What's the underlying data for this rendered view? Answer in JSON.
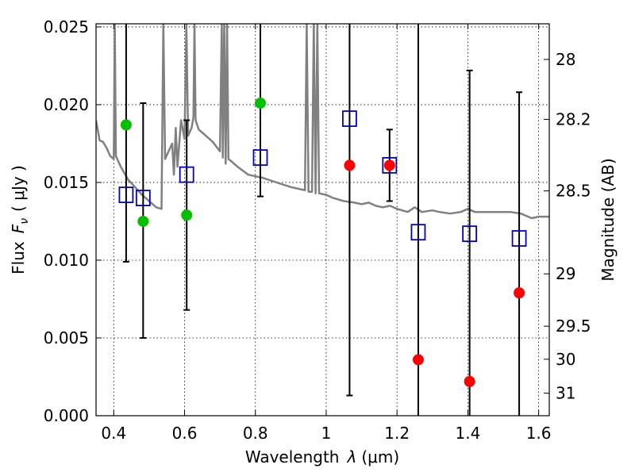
{
  "chart_data": {
    "type": "scatter",
    "xlabel_text": "Wavelength",
    "xlabel_symbol": "λ",
    "xlabel_unit": "(μm)",
    "ylabel_text": "Flux",
    "ylabel_symbol": "F",
    "ylabel_subscript": "ν",
    "ylabel_unit": "( μJy )",
    "y2label": "Magnitude (AB)",
    "xlim": [
      0.35,
      1.63
    ],
    "ylim": [
      0.0,
      0.0252
    ],
    "x_ticks": [
      0.4,
      0.6,
      0.8,
      1.0,
      1.2,
      1.4,
      1.6
    ],
    "x_tick_labels": [
      "0.4",
      "0.6",
      "0.8",
      "1",
      "1.2",
      "1.4",
      "1.6"
    ],
    "y_ticks": [
      0.0,
      0.005,
      0.01,
      0.015,
      0.02,
      0.025
    ],
    "y_tick_labels": [
      "0.000",
      "0.005",
      "0.010",
      "0.015",
      "0.020",
      "0.025"
    ],
    "magnitude_ticks": [
      {
        "mag": 28,
        "label": "28"
      },
      {
        "mag": 28.2,
        "label": "28.2"
      },
      {
        "mag": 28.5,
        "label": "28.5"
      },
      {
        "mag": 29,
        "label": "29"
      },
      {
        "mag": 29.5,
        "label": "29.5"
      },
      {
        "mag": 30,
        "label": "30"
      },
      {
        "mag": 31,
        "label": "31"
      }
    ],
    "grid": true,
    "colors": {
      "green": "#00c000",
      "red": "#ff0000",
      "blue": "#0000cc",
      "spectrum": "#808080",
      "errorbar": "#000000"
    },
    "error_bars": [
      {
        "x": 0.435,
        "lo": 0.0099,
        "hi": 0.0252
      },
      {
        "x": 0.483,
        "lo": 0.005,
        "hi": 0.0201
      },
      {
        "x": 0.606,
        "lo": 0.0068,
        "hi": 0.019
      },
      {
        "x": 0.814,
        "lo": 0.0141,
        "hi": 0.0252
      },
      {
        "x": 1.066,
        "lo": 0.0013,
        "hi": 0.0252
      },
      {
        "x": 1.179,
        "lo": 0.0138,
        "hi": 0.0184
      },
      {
        "x": 1.26,
        "lo": 0.0,
        "hi": 0.0252
      },
      {
        "x": 1.405,
        "lo": 0.0,
        "hi": 0.0222
      },
      {
        "x": 1.545,
        "lo": 0.0,
        "hi": 0.0208
      }
    ],
    "series": [
      {
        "name": "green detections",
        "marker": "circle",
        "color": "green",
        "points": [
          [
            0.435,
            0.0187
          ],
          [
            0.483,
            0.0125
          ],
          [
            0.606,
            0.0129
          ],
          [
            0.814,
            0.0201
          ]
        ]
      },
      {
        "name": "red detections",
        "marker": "circle",
        "color": "red",
        "points": [
          [
            1.066,
            0.0161
          ],
          [
            1.179,
            0.0161
          ],
          [
            1.26,
            0.0036
          ],
          [
            1.405,
            0.0022
          ],
          [
            1.545,
            0.0079
          ]
        ]
      },
      {
        "name": "model photometry",
        "marker": "square",
        "color": "blue",
        "points": [
          [
            0.435,
            0.0142
          ],
          [
            0.483,
            0.014
          ],
          [
            0.606,
            0.0155
          ],
          [
            0.814,
            0.0166
          ],
          [
            1.066,
            0.0191
          ],
          [
            1.179,
            0.0161
          ],
          [
            1.26,
            0.0118
          ],
          [
            1.405,
            0.0117
          ],
          [
            1.545,
            0.0114
          ]
        ]
      },
      {
        "name": "model spectrum",
        "marker": "line",
        "color": "spectrum",
        "points": [
          [
            0.35,
            0.019
          ],
          [
            0.36,
            0.0177
          ],
          [
            0.37,
            0.0176
          ],
          [
            0.38,
            0.0172
          ],
          [
            0.39,
            0.0167
          ],
          [
            0.4,
            0.0165
          ],
          [
            0.403,
            0.0252
          ],
          [
            0.406,
            0.0167
          ],
          [
            0.42,
            0.016
          ],
          [
            0.44,
            0.0152
          ],
          [
            0.46,
            0.0147
          ],
          [
            0.48,
            0.0142
          ],
          [
            0.5,
            0.0138
          ],
          [
            0.52,
            0.0134
          ],
          [
            0.535,
            0.0133
          ],
          [
            0.54,
            0.0252
          ],
          [
            0.545,
            0.0165
          ],
          [
            0.555,
            0.017
          ],
          [
            0.565,
            0.0175
          ],
          [
            0.57,
            0.0155
          ],
          [
            0.575,
            0.0185
          ],
          [
            0.58,
            0.016
          ],
          [
            0.59,
            0.019
          ],
          [
            0.6,
            0.0178
          ],
          [
            0.605,
            0.0252
          ],
          [
            0.61,
            0.018
          ],
          [
            0.62,
            0.0185
          ],
          [
            0.625,
            0.0192
          ],
          [
            0.628,
            0.0252
          ],
          [
            0.631,
            0.019
          ],
          [
            0.64,
            0.0184
          ],
          [
            0.66,
            0.018
          ],
          [
            0.68,
            0.0176
          ],
          [
            0.7,
            0.017
          ],
          [
            0.705,
            0.0252
          ],
          [
            0.708,
            0.0166
          ],
          [
            0.712,
            0.0252
          ],
          [
            0.716,
            0.0162
          ],
          [
            0.72,
            0.0252
          ],
          [
            0.724,
            0.0165
          ],
          [
            0.73,
            0.0164
          ],
          [
            0.75,
            0.016
          ],
          [
            0.78,
            0.0155
          ],
          [
            0.82,
            0.0153
          ],
          [
            0.86,
            0.015
          ],
          [
            0.9,
            0.0147
          ],
          [
            0.94,
            0.0145
          ],
          [
            0.945,
            0.0252
          ],
          [
            0.95,
            0.0144
          ],
          [
            0.96,
            0.0144
          ],
          [
            0.965,
            0.0252
          ],
          [
            0.97,
            0.0143
          ],
          [
            0.975,
            0.0252
          ],
          [
            0.98,
            0.0143
          ],
          [
            1.0,
            0.0142
          ],
          [
            1.02,
            0.014
          ],
          [
            1.05,
            0.0138
          ],
          [
            1.08,
            0.0137
          ],
          [
            1.1,
            0.0136
          ],
          [
            1.12,
            0.0137
          ],
          [
            1.14,
            0.0135
          ],
          [
            1.16,
            0.0134
          ],
          [
            1.18,
            0.0135
          ],
          [
            1.2,
            0.0133
          ],
          [
            1.23,
            0.0131
          ],
          [
            1.25,
            0.0134
          ],
          [
            1.27,
            0.0131
          ],
          [
            1.3,
            0.0132
          ],
          [
            1.32,
            0.0131
          ],
          [
            1.35,
            0.013
          ],
          [
            1.38,
            0.0131
          ],
          [
            1.4,
            0.0133
          ],
          [
            1.42,
            0.0131
          ],
          [
            1.45,
            0.0131
          ],
          [
            1.48,
            0.0131
          ],
          [
            1.5,
            0.0131
          ],
          [
            1.52,
            0.0131
          ],
          [
            1.55,
            0.013
          ],
          [
            1.58,
            0.0127
          ],
          [
            1.6,
            0.0128
          ],
          [
            1.63,
            0.0128
          ]
        ]
      }
    ]
  }
}
